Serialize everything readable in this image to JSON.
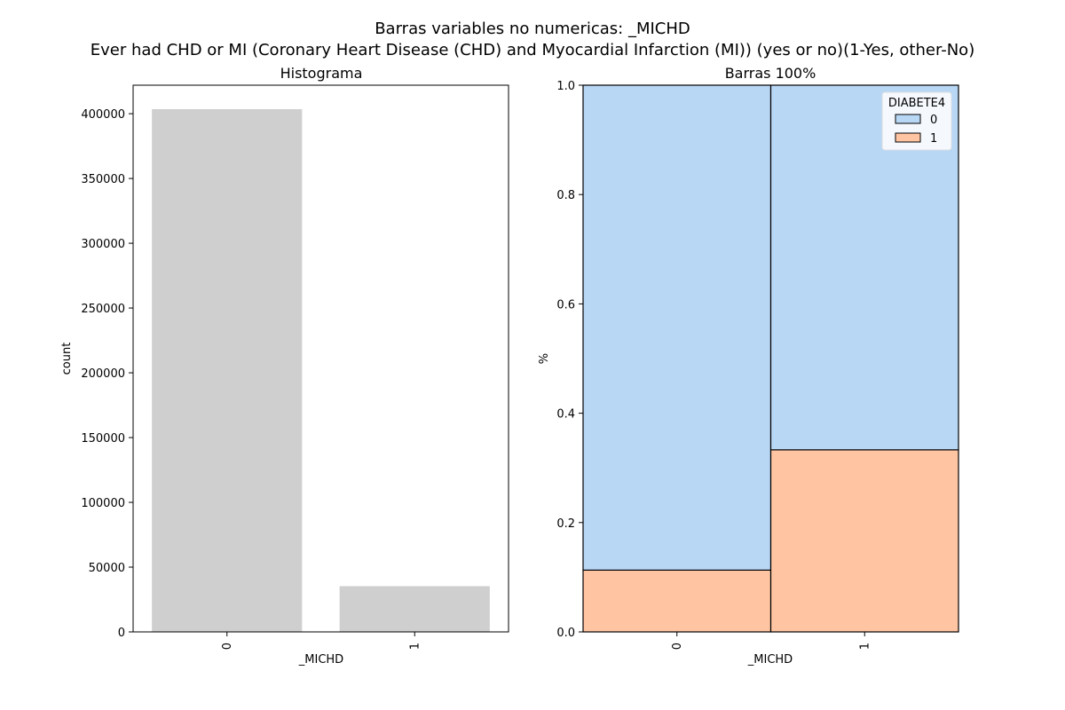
{
  "figure": {
    "title_line1": "Barras variables no numericas: _MICHD",
    "title_line2": "Ever had CHD or MI (Coronary Heart Disease (CHD) and Myocardial Infarction (MI)) (yes or no)(1-Yes, other-No)"
  },
  "chart_data": [
    {
      "type": "bar",
      "title": "Histograma",
      "xlabel": "_MICHD",
      "ylabel": "count",
      "categories": [
        "0",
        "1"
      ],
      "values": [
        403500,
        35300
      ],
      "ylim": [
        0,
        422000
      ],
      "yticks": [
        0,
        50000,
        100000,
        150000,
        200000,
        250000,
        300000,
        350000,
        400000
      ],
      "ytick_labels": [
        "0",
        "50000",
        "100000",
        "150000",
        "200000",
        "250000",
        "300000",
        "350000",
        "400000"
      ],
      "bar_color": "#cfcfcf",
      "grid": false
    },
    {
      "type": "bar",
      "stacked": true,
      "normalized": true,
      "title": "Barras 100%",
      "xlabel": "_MICHD",
      "ylabel": "%",
      "categories": [
        "0",
        "1"
      ],
      "series": [
        {
          "name": "1",
          "values": [
            0.113,
            0.333
          ],
          "color": "#ffc5a3"
        },
        {
          "name": "0",
          "values": [
            0.887,
            0.667
          ],
          "color": "#b8d7f5"
        }
      ],
      "ylim": [
        0,
        1
      ],
      "yticks": [
        0,
        0.2,
        0.4,
        0.6,
        0.8,
        1.0
      ],
      "ytick_labels": [
        "0.0",
        "0.2",
        "0.4",
        "0.6",
        "0.8",
        "1.0"
      ],
      "legend": {
        "title": "DIABETE4",
        "placement": "top-right",
        "entries": [
          {
            "label": "0",
            "color": "#b8d7f5"
          },
          {
            "label": "1",
            "color": "#ffc5a3"
          }
        ]
      },
      "grid": false
    }
  ]
}
